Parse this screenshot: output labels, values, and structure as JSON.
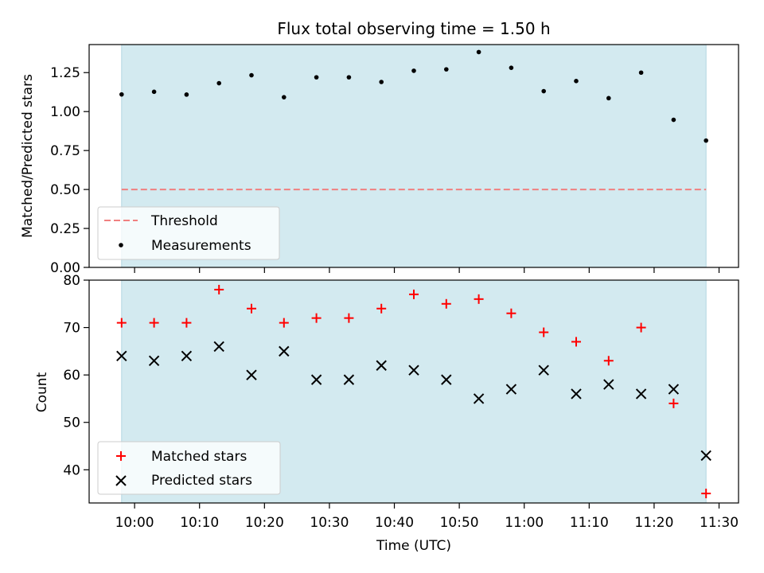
{
  "chart_data": [
    {
      "type": "scatter",
      "title": "Flux total observing time = 1.50 h",
      "xlabel": "",
      "ylabel": "Matched/Predicted stars",
      "ylim": [
        0,
        1.43
      ],
      "yticks": [
        "0.00",
        "0.25",
        "0.50",
        "0.75",
        "1.00",
        "1.25"
      ],
      "threshold": {
        "name": "Threshold",
        "value": 0.5,
        "color": "#f08080"
      },
      "series": [
        {
          "name": "Measurements",
          "color": "#000000",
          "x": [
            "09:58",
            "10:03",
            "10:08",
            "10:13",
            "10:18",
            "10:23",
            "10:28",
            "10:33",
            "10:38",
            "10:43",
            "10:48",
            "10:53",
            "10:58",
            "11:03",
            "11:08",
            "11:13",
            "11:18",
            "11:23",
            "11:28"
          ],
          "y": [
            1.11,
            1.127,
            1.109,
            1.182,
            1.233,
            1.092,
            1.22,
            1.22,
            1.19,
            1.262,
            1.271,
            1.382,
            1.281,
            1.131,
            1.196,
            1.086,
            1.25,
            0.947,
            0.814
          ]
        }
      ],
      "legend": "lower-left"
    },
    {
      "type": "scatter",
      "title": "",
      "xlabel": "Time (UTC)",
      "ylabel": "Count",
      "ylim": [
        33,
        80
      ],
      "yticks": [
        "40",
        "50",
        "60",
        "70",
        "80"
      ],
      "series": [
        {
          "name": "Matched stars",
          "marker": "+",
          "color": "#ff0000",
          "x": [
            "09:58",
            "10:03",
            "10:08",
            "10:13",
            "10:18",
            "10:23",
            "10:28",
            "10:33",
            "10:38",
            "10:43",
            "10:48",
            "10:53",
            "10:58",
            "11:03",
            "11:08",
            "11:13",
            "11:18",
            "11:23",
            "11:28"
          ],
          "y": [
            71,
            71,
            71,
            78,
            74,
            71,
            72,
            72,
            74,
            77,
            75,
            76,
            73,
            69,
            67,
            63,
            70,
            54,
            35
          ]
        },
        {
          "name": "Predicted stars",
          "marker": "x",
          "color": "#000000",
          "x": [
            "09:58",
            "10:03",
            "10:08",
            "10:13",
            "10:18",
            "10:23",
            "10:28",
            "10:33",
            "10:38",
            "10:43",
            "10:48",
            "10:53",
            "10:58",
            "11:03",
            "11:08",
            "11:13",
            "11:18",
            "11:23",
            "11:28"
          ],
          "y": [
            64,
            63,
            64,
            66,
            60,
            65,
            59,
            59,
            62,
            61,
            59,
            55,
            57,
            61,
            56,
            58,
            56,
            57,
            43
          ]
        }
      ],
      "legend": "lower-left"
    }
  ],
  "x_axis": {
    "xlim": [
      "09:53",
      "11:33"
    ],
    "tick_labels": [
      "10:00",
      "10:10",
      "10:20",
      "10:30",
      "10:40",
      "10:50",
      "11:00",
      "11:10",
      "11:20",
      "11:30"
    ]
  },
  "shaded_interval": {
    "start": "09:58",
    "end": "11:28",
    "color": "#d3eaf0"
  }
}
